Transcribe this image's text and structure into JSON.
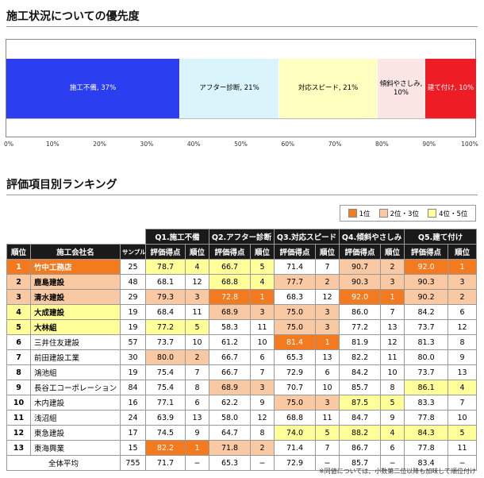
{
  "section1_title": "施工状況についての優先度",
  "section2_title": "評価項目別ランキング",
  "colors": {
    "seg1": "#2b3ff0",
    "seg2": "#d9f4fb",
    "seg3": "#ffffc0",
    "seg4": "#fbe5e5",
    "seg5": "#ee1c25",
    "rank1": "#f47a20",
    "rank23": "#f9c9a4",
    "rank45": "#ffff99"
  },
  "chart_data": [
    {
      "type": "bar",
      "orientation": "horizontal-stacked",
      "title": "施工状況についての優先度",
      "series": [
        {
          "name": "施工不備",
          "value": 37,
          "label": "施工不備, 37%"
        },
        {
          "name": "アフター診断",
          "value": 21,
          "label": "アフター診断, 21%"
        },
        {
          "name": "対応スピード",
          "value": 21,
          "label": "対応スピード, 21%"
        },
        {
          "name": "傾斜やさしみ",
          "value": 10,
          "label": "傾斜やさしみ, 10%"
        },
        {
          "name": "建て付け",
          "value": 10,
          "label": "建て付け, 10%"
        }
      ],
      "xlim": [
        0,
        100
      ],
      "xticks": [
        "0%",
        "10%",
        "20%",
        "30%",
        "40%",
        "50%",
        "60%",
        "70%",
        "80%",
        "90%",
        "100%"
      ]
    },
    {
      "type": "table",
      "title": "評価項目別ランキング",
      "legend": [
        "1位",
        "2位・3位",
        "4位・5位"
      ],
      "question_headers": [
        "Q1.施工不備",
        "Q2.アフター診断",
        "Q3.対応スピード",
        "Q4.傾斜やさしみ",
        "Q5.建て付け"
      ],
      "col_headers": {
        "rank": "順位",
        "company": "施工会社名",
        "sample": "サンプル数",
        "score": "評価得点",
        "qrank": "順位"
      },
      "rows": [
        {
          "rank": "1",
          "company": "竹中工務店",
          "sample": "25",
          "q": [
            [
              "78.7",
              "4"
            ],
            [
              "66.7",
              "5"
            ],
            [
              "71.4",
              "7"
            ],
            [
              "90.7",
              "2"
            ],
            [
              "92.0",
              "1"
            ]
          ]
        },
        {
          "rank": "2",
          "company": "鹿島建設",
          "sample": "48",
          "q": [
            [
              "68.1",
              "12"
            ],
            [
              "68.8",
              "4"
            ],
            [
              "77.7",
              "2"
            ],
            [
              "90.3",
              "3"
            ],
            [
              "90.3",
              "3"
            ]
          ]
        },
        {
          "rank": "3",
          "company": "清水建設",
          "sample": "29",
          "q": [
            [
              "79.3",
              "3"
            ],
            [
              "72.8",
              "1"
            ],
            [
              "68.3",
              "12"
            ],
            [
              "92.0",
              "1"
            ],
            [
              "90.2",
              "2"
            ]
          ]
        },
        {
          "rank": "4",
          "company": "大成建設",
          "sample": "19",
          "q": [
            [
              "68.4",
              "11"
            ],
            [
              "68.9",
              "3"
            ],
            [
              "75.0",
              "3"
            ],
            [
              "86.0",
              "7"
            ],
            [
              "84.2",
              "6"
            ]
          ]
        },
        {
          "rank": "5",
          "company": "大林組",
          "sample": "19",
          "q": [
            [
              "77.2",
              "5"
            ],
            [
              "58.3",
              "11"
            ],
            [
              "75.0",
              "3"
            ],
            [
              "77.2",
              "13"
            ],
            [
              "73.7",
              "12"
            ]
          ]
        },
        {
          "rank": "6",
          "company": "三井住友建設",
          "sample": "57",
          "q": [
            [
              "73.7",
              "10"
            ],
            [
              "61.2",
              "10"
            ],
            [
              "81.4",
              "1"
            ],
            [
              "81.9",
              "12"
            ],
            [
              "81.3",
              "8"
            ]
          ]
        },
        {
          "rank": "7",
          "company": "前田建設工業",
          "sample": "30",
          "q": [
            [
              "80.0",
              "2"
            ],
            [
              "66.7",
              "6"
            ],
            [
              "65.3",
              "13"
            ],
            [
              "82.2",
              "11"
            ],
            [
              "80.0",
              "9"
            ]
          ]
        },
        {
          "rank": "8",
          "company": "鴻池組",
          "sample": "19",
          "q": [
            [
              "75.4",
              "7"
            ],
            [
              "66.7",
              "7"
            ],
            [
              "72.9",
              "6"
            ],
            [
              "84.2",
              "10"
            ],
            [
              "73.7",
              "13"
            ]
          ]
        },
        {
          "rank": "9",
          "company": "長谷工コーポレーション",
          "sample": "84",
          "q": [
            [
              "75.4",
              "8"
            ],
            [
              "68.9",
              "3"
            ],
            [
              "70.7",
              "10"
            ],
            [
              "85.7",
              "8"
            ],
            [
              "86.1",
              "4"
            ]
          ]
        },
        {
          "rank": "10",
          "company": "木内建設",
          "sample": "16",
          "q": [
            [
              "77.1",
              "6"
            ],
            [
              "62.2",
              "9"
            ],
            [
              "75.0",
              "3"
            ],
            [
              "87.5",
              "5"
            ],
            [
              "83.3",
              "7"
            ]
          ]
        },
        {
          "rank": "11",
          "company": "浅沼組",
          "sample": "24",
          "q": [
            [
              "63.9",
              "13"
            ],
            [
              "58.0",
              "12"
            ],
            [
              "68.8",
              "11"
            ],
            [
              "84.7",
              "9"
            ],
            [
              "77.8",
              "10"
            ]
          ]
        },
        {
          "rank": "12",
          "company": "東急建設",
          "sample": "17",
          "q": [
            [
              "74.5",
              "9"
            ],
            [
              "64.7",
              "8"
            ],
            [
              "74.0",
              "5"
            ],
            [
              "88.2",
              "4"
            ],
            [
              "84.3",
              "5"
            ]
          ]
        },
        {
          "rank": "13",
          "company": "東海興業",
          "sample": "15",
          "q": [
            [
              "82.2",
              "1"
            ],
            [
              "71.8",
              "2"
            ],
            [
              "71.4",
              "7"
            ],
            [
              "86.7",
              "6"
            ],
            [
              "77.8",
              "11"
            ]
          ]
        }
      ],
      "average": {
        "label": "全体平均",
        "sample": "755",
        "q": [
          [
            "71.7",
            "−"
          ],
          [
            "65.3",
            "−"
          ],
          [
            "72.9",
            "−"
          ],
          [
            "85.7",
            "−"
          ],
          [
            "83.4",
            "−"
          ]
        ]
      }
    }
  ],
  "note": "※同値については、小数第二位以降も加味して順位付け"
}
